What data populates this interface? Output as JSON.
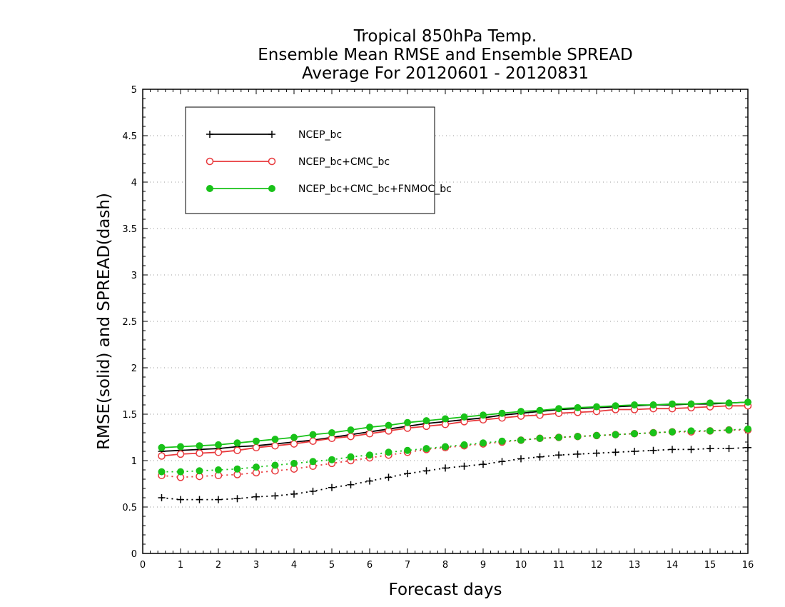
{
  "chart_data": {
    "type": "line",
    "title": [
      "Tropical 850hPa Temp.",
      "Ensemble Mean RMSE and Ensemble SPREAD",
      "Average For 20120601 - 20120831"
    ],
    "xlabel": "Forecast days",
    "ylabel": "RMSE(solid) and SPREAD(dash)",
    "xlim": [
      0,
      16
    ],
    "ylim": [
      0,
      5
    ],
    "xticks": [
      "0",
      "1",
      "2",
      "3",
      "4",
      "5",
      "6",
      "7",
      "8",
      "9",
      "10",
      "11",
      "12",
      "13",
      "14",
      "15",
      "16"
    ],
    "yticks": [
      "0",
      "0.5",
      "1",
      "1.5",
      "2",
      "2.5",
      "3",
      "3.5",
      "4",
      "4.5",
      "5"
    ],
    "grid": "horizontal dotted",
    "legend_position": "top-left",
    "x": [
      0.5,
      1,
      1.5,
      2,
      2.5,
      3,
      3.5,
      4,
      4.5,
      5,
      5.5,
      6,
      6.5,
      7,
      7.5,
      8,
      8.5,
      9,
      9.5,
      10,
      10.5,
      11,
      11.5,
      12,
      12.5,
      13,
      13.5,
      14,
      14.5,
      15,
      15.5,
      16
    ],
    "series": [
      {
        "name": "NCEP_bc",
        "color": "#000000",
        "marker": "plus",
        "rmse": [
          1.1,
          1.11,
          1.12,
          1.13,
          1.15,
          1.16,
          1.18,
          1.2,
          1.22,
          1.25,
          1.28,
          1.31,
          1.34,
          1.37,
          1.4,
          1.42,
          1.44,
          1.46,
          1.49,
          1.51,
          1.53,
          1.55,
          1.56,
          1.57,
          1.58,
          1.59,
          1.6,
          1.6,
          1.61,
          1.61,
          1.62,
          1.63
        ],
        "spread": [
          0.6,
          0.58,
          0.58,
          0.58,
          0.59,
          0.61,
          0.62,
          0.64,
          0.67,
          0.71,
          0.74,
          0.78,
          0.82,
          0.86,
          0.89,
          0.92,
          0.94,
          0.96,
          0.99,
          1.02,
          1.04,
          1.06,
          1.07,
          1.08,
          1.09,
          1.1,
          1.11,
          1.12,
          1.12,
          1.13,
          1.13,
          1.14
        ]
      },
      {
        "name": "NCEP_bc+CMC_bc",
        "color": "#e8393c",
        "marker": "open-circle",
        "rmse": [
          1.05,
          1.07,
          1.08,
          1.09,
          1.11,
          1.14,
          1.16,
          1.18,
          1.21,
          1.24,
          1.26,
          1.29,
          1.32,
          1.35,
          1.37,
          1.39,
          1.42,
          1.44,
          1.46,
          1.48,
          1.49,
          1.51,
          1.52,
          1.53,
          1.55,
          1.55,
          1.56,
          1.56,
          1.57,
          1.58,
          1.59,
          1.59
        ],
        "spread": [
          0.84,
          0.82,
          0.83,
          0.84,
          0.85,
          0.87,
          0.89,
          0.91,
          0.94,
          0.97,
          1.0,
          1.03,
          1.06,
          1.09,
          1.12,
          1.14,
          1.16,
          1.18,
          1.2,
          1.22,
          1.24,
          1.25,
          1.26,
          1.27,
          1.28,
          1.29,
          1.3,
          1.31,
          1.31,
          1.32,
          1.33,
          1.33
        ]
      },
      {
        "name": "NCEP_bc+CMC_bc+FNMOC_bc",
        "color": "#19c219",
        "marker": "filled-circle",
        "rmse": [
          1.14,
          1.15,
          1.16,
          1.17,
          1.19,
          1.21,
          1.23,
          1.25,
          1.28,
          1.3,
          1.33,
          1.36,
          1.38,
          1.41,
          1.43,
          1.45,
          1.47,
          1.49,
          1.51,
          1.53,
          1.54,
          1.56,
          1.57,
          1.58,
          1.59,
          1.6,
          1.6,
          1.61,
          1.61,
          1.62,
          1.62,
          1.63
        ],
        "spread": [
          0.88,
          0.88,
          0.89,
          0.9,
          0.91,
          0.93,
          0.95,
          0.97,
          0.99,
          1.01,
          1.04,
          1.06,
          1.09,
          1.11,
          1.13,
          1.15,
          1.17,
          1.19,
          1.21,
          1.22,
          1.24,
          1.25,
          1.26,
          1.27,
          1.28,
          1.29,
          1.3,
          1.31,
          1.32,
          1.32,
          1.33,
          1.34
        ]
      }
    ]
  }
}
